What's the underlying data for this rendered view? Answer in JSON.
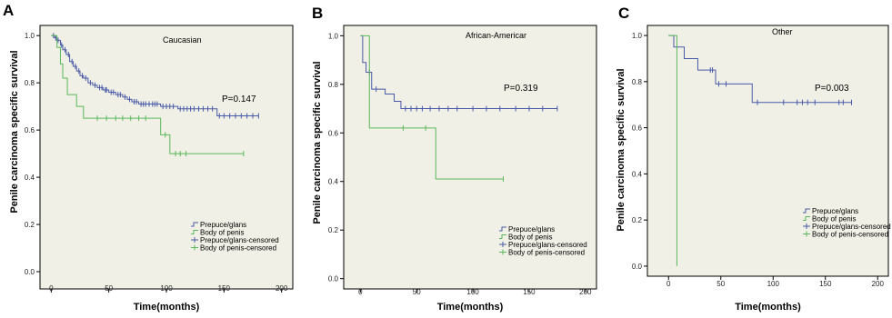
{
  "colors": {
    "prepuce": "#4a5aa8",
    "body": "#5cb85c",
    "plot_bg": "#f0f0e6"
  },
  "chart_data": [
    {
      "type": "line",
      "panel": "A",
      "title": "Caucasian",
      "annotation": "P=0.147",
      "xlabel": "Time(months)",
      "ylabel": "Penile carcinoma specific survival",
      "xlim": [
        -5,
        205
      ],
      "ylim": [
        -0.05,
        1.02
      ],
      "xticks": [
        0,
        50,
        100,
        150,
        200
      ],
      "yticks": [
        "0.0",
        "0.2",
        "0.4",
        "0.6",
        "0.8",
        "1.0"
      ],
      "legend": [
        "Prepuce/glans",
        "Body of penis",
        "Prepuce/glans-censored",
        "Body of penis-censored"
      ],
      "series": [
        {
          "name": "Prepuce/glans",
          "color_key": "prepuce",
          "steps": [
            [
              0,
              1.0
            ],
            [
              3,
              0.99
            ],
            [
              5,
              0.98
            ],
            [
              8,
              0.96
            ],
            [
              10,
              0.94
            ],
            [
              13,
              0.92
            ],
            [
              16,
              0.89
            ],
            [
              19,
              0.87
            ],
            [
              22,
              0.85
            ],
            [
              25,
              0.83
            ],
            [
              28,
              0.82
            ],
            [
              32,
              0.8
            ],
            [
              36,
              0.79
            ],
            [
              40,
              0.78
            ],
            [
              45,
              0.77
            ],
            [
              50,
              0.76
            ],
            [
              56,
              0.75
            ],
            [
              62,
              0.74
            ],
            [
              66,
              0.73
            ],
            [
              70,
              0.72
            ],
            [
              76,
              0.71
            ],
            [
              95,
              0.7
            ],
            [
              110,
              0.69
            ],
            [
              144,
              0.66
            ],
            [
              180,
              0.66
            ]
          ],
          "censored": [
            [
              2,
              1.0
            ],
            [
              4,
              0.99
            ],
            [
              6,
              0.98
            ],
            [
              9,
              0.96
            ],
            [
              12,
              0.94
            ],
            [
              15,
              0.92
            ],
            [
              18,
              0.89
            ],
            [
              21,
              0.87
            ],
            [
              24,
              0.85
            ],
            [
              27,
              0.83
            ],
            [
              30,
              0.82
            ],
            [
              34,
              0.8
            ],
            [
              38,
              0.79
            ],
            [
              42,
              0.78
            ],
            [
              44,
              0.78
            ],
            [
              47,
              0.77
            ],
            [
              48,
              0.77
            ],
            [
              52,
              0.76
            ],
            [
              54,
              0.76
            ],
            [
              58,
              0.75
            ],
            [
              60,
              0.75
            ],
            [
              64,
              0.74
            ],
            [
              68,
              0.73
            ],
            [
              72,
              0.72
            ],
            [
              74,
              0.72
            ],
            [
              78,
              0.71
            ],
            [
              80,
              0.71
            ],
            [
              82,
              0.71
            ],
            [
              85,
              0.71
            ],
            [
              88,
              0.71
            ],
            [
              90,
              0.71
            ],
            [
              92,
              0.71
            ],
            [
              97,
              0.7
            ],
            [
              100,
              0.7
            ],
            [
              103,
              0.7
            ],
            [
              106,
              0.7
            ],
            [
              112,
              0.69
            ],
            [
              115,
              0.69
            ],
            [
              118,
              0.69
            ],
            [
              121,
              0.69
            ],
            [
              124,
              0.69
            ],
            [
              128,
              0.69
            ],
            [
              132,
              0.69
            ],
            [
              136,
              0.69
            ],
            [
              140,
              0.69
            ],
            [
              146,
              0.66
            ],
            [
              150,
              0.66
            ],
            [
              155,
              0.66
            ],
            [
              160,
              0.66
            ],
            [
              165,
              0.66
            ],
            [
              170,
              0.66
            ],
            [
              175,
              0.66
            ],
            [
              180,
              0.66
            ]
          ]
        },
        {
          "name": "Body of penis",
          "color_key": "body",
          "steps": [
            [
              0,
              1.0
            ],
            [
              5,
              0.95
            ],
            [
              8,
              0.88
            ],
            [
              10,
              0.82
            ],
            [
              14,
              0.75
            ],
            [
              22,
              0.7
            ],
            [
              28,
              0.65
            ],
            [
              95,
              0.58
            ],
            [
              103,
              0.5
            ],
            [
              167,
              0.5
            ]
          ],
          "censored": [
            [
              40,
              0.65
            ],
            [
              48,
              0.65
            ],
            [
              56,
              0.65
            ],
            [
              62,
              0.65
            ],
            [
              69,
              0.65
            ],
            [
              76,
              0.65
            ],
            [
              82,
              0.65
            ],
            [
              99,
              0.58
            ],
            [
              108,
              0.5
            ],
            [
              112,
              0.5
            ],
            [
              117,
              0.5
            ],
            [
              167,
              0.5
            ]
          ]
        }
      ]
    },
    {
      "type": "line",
      "panel": "B",
      "title": "African-Americar",
      "annotation": "P=0.319",
      "xlabel": "Time(months)",
      "ylabel": "Penile carcinoma specific survival",
      "xlim": [
        -10,
        205
      ],
      "ylim": [
        -0.02,
        1.02
      ],
      "xticks": [
        0,
        50,
        100,
        150,
        200
      ],
      "yticks": [
        "0.0",
        "0.2",
        "0.4",
        "0.6",
        "0.8",
        "1.0"
      ],
      "legend": [
        "Prepuce/glans",
        "Body of penis",
        "Prepuce/glans-censored",
        "Body of penis-censored"
      ],
      "series": [
        {
          "name": "Prepuce/glans",
          "color_key": "prepuce",
          "steps": [
            [
              0,
              1.0
            ],
            [
              2,
              0.89
            ],
            [
              5,
              0.85
            ],
            [
              10,
              0.78
            ],
            [
              22,
              0.76
            ],
            [
              30,
              0.73
            ],
            [
              36,
              0.7
            ],
            [
              175,
              0.7
            ]
          ],
          "censored": [
            [
              8,
              0.85
            ],
            [
              14,
              0.78
            ],
            [
              40,
              0.7
            ],
            [
              45,
              0.7
            ],
            [
              50,
              0.7
            ],
            [
              55,
              0.7
            ],
            [
              62,
              0.7
            ],
            [
              70,
              0.7
            ],
            [
              78,
              0.7
            ],
            [
              86,
              0.7
            ],
            [
              100,
              0.7
            ],
            [
              112,
              0.7
            ],
            [
              124,
              0.7
            ],
            [
              138,
              0.7
            ],
            [
              150,
              0.7
            ],
            [
              162,
              0.7
            ],
            [
              175,
              0.7
            ]
          ]
        },
        {
          "name": "Body of penis",
          "color_key": "body",
          "steps": [
            [
              0,
              1.0
            ],
            [
              8,
              0.62
            ],
            [
              67,
              0.41
            ],
            [
              127,
              0.41
            ]
          ],
          "censored": [
            [
              38,
              0.62
            ],
            [
              58,
              0.62
            ],
            [
              127,
              0.41
            ]
          ]
        }
      ]
    },
    {
      "type": "line",
      "panel": "C",
      "title": "Other",
      "annotation": "P=0.003",
      "xlabel": "Time(months)",
      "ylabel": "Penile carcinoma specific survival",
      "xlim": [
        -15,
        205
      ],
      "ylim": [
        -0.02,
        1.02
      ],
      "xticks": [
        0,
        50,
        100,
        150,
        200
      ],
      "yticks": [
        "0.0",
        "0.2",
        "0.4",
        "0.6",
        "0.8",
        "1.0"
      ],
      "legend": [
        "Prepuce/glans",
        "Body of penis",
        "Prepuce/glans-censored",
        "Body of penis-censored"
      ],
      "series": [
        {
          "name": "Prepuce/glans",
          "color_key": "prepuce",
          "steps": [
            [
              0,
              1.0
            ],
            [
              5,
              0.95
            ],
            [
              15,
              0.9
            ],
            [
              28,
              0.85
            ],
            [
              45,
              0.79
            ],
            [
              80,
              0.71
            ],
            [
              175,
              0.71
            ]
          ],
          "censored": [
            [
              40,
              0.85
            ],
            [
              42,
              0.85
            ],
            [
              48,
              0.79
            ],
            [
              55,
              0.79
            ],
            [
              85,
              0.71
            ],
            [
              110,
              0.71
            ],
            [
              123,
              0.71
            ],
            [
              128,
              0.71
            ],
            [
              133,
              0.71
            ],
            [
              140,
              0.71
            ],
            [
              163,
              0.71
            ],
            [
              167,
              0.71
            ],
            [
              175,
              0.71
            ]
          ]
        },
        {
          "name": "Body of penis",
          "color_key": "body",
          "steps": [
            [
              0,
              1.0
            ],
            [
              8,
              0.0
            ]
          ],
          "censored": []
        }
      ]
    }
  ]
}
